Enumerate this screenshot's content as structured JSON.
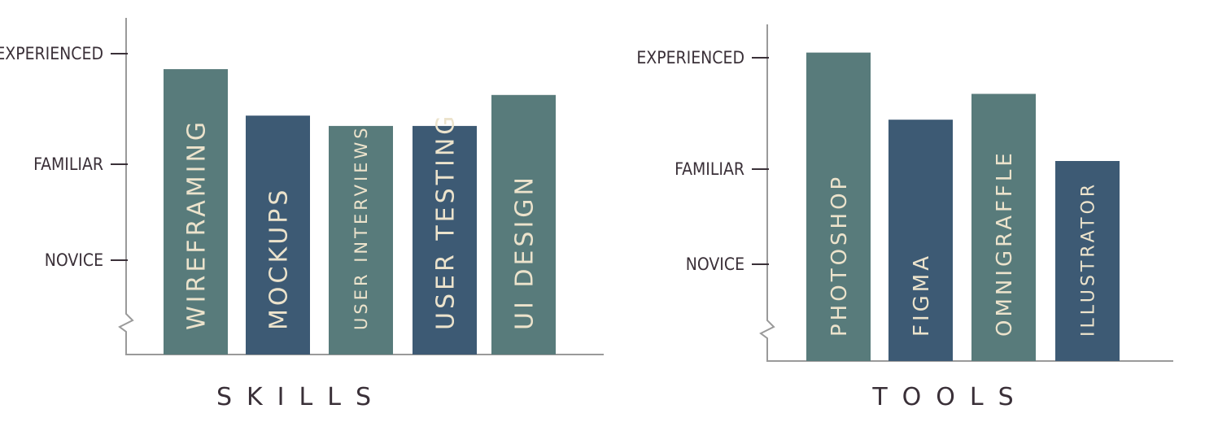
{
  "colors": {
    "teal": "#587b7b",
    "navy": "#3d5a74",
    "label": "#ece3cc",
    "text": "#3a3038",
    "axis": "#9a9a9a"
  },
  "chart_data": [
    {
      "type": "bar",
      "title": "SKILLS",
      "ylevels": [
        {
          "label": "EXPERIENCED",
          "value": 3
        },
        {
          "label": "FAMILIAR",
          "value": 2
        },
        {
          "label": "NOVICE",
          "value": 1
        }
      ],
      "ylim": [
        0,
        3
      ],
      "categories": [
        "WIREFRAMING",
        "MOCKUPS",
        "USER INTERVIEWS",
        "USER TESTING",
        "UI DESIGN"
      ],
      "values": [
        2.85,
        2.4,
        2.3,
        2.3,
        2.6
      ],
      "bar_colors": [
        "#587b7b",
        "#3d5a74",
        "#587b7b",
        "#3d5a74",
        "#587b7b"
      ]
    },
    {
      "type": "bar",
      "title": "TOOLS",
      "ylevels": [
        {
          "label": "EXPERIENCED",
          "value": 3
        },
        {
          "label": "FAMILIAR",
          "value": 2
        },
        {
          "label": "NOVICE",
          "value": 1
        }
      ],
      "ylim": [
        0,
        3
      ],
      "categories": [
        "PHOTOSHOP",
        "FIGMA",
        "OMNIGRAFFLE",
        "ILLUSTRATOR"
      ],
      "values": [
        3.05,
        2.4,
        2.65,
        2.0
      ],
      "bar_colors": [
        "#587b7b",
        "#3d5a74",
        "#587b7b",
        "#3d5a74"
      ]
    }
  ]
}
